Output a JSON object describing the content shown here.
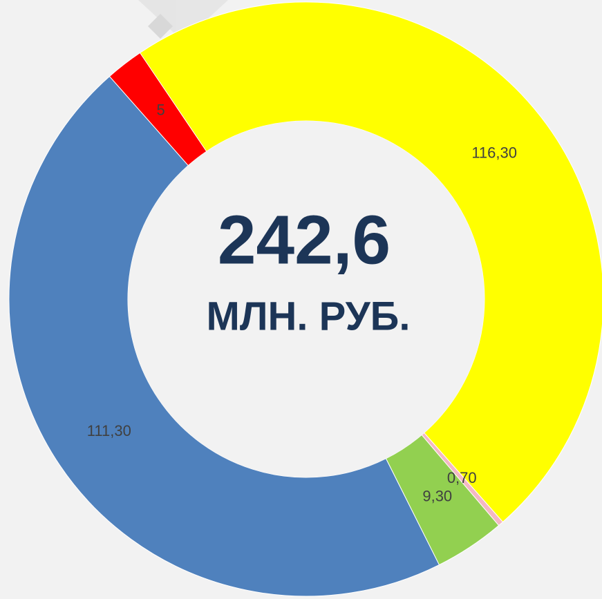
{
  "chart_data": {
    "type": "donut",
    "center_value": "242,6",
    "center_unit": "МЛН. РУБ.",
    "categories": [
      null,
      null,
      null,
      null,
      null
    ],
    "values": [
      116.3,
      0.7,
      9.3,
      111.3,
      5
    ],
    "value_labels": [
      "116,30",
      "0,70",
      "9,30",
      "111,30",
      "5"
    ],
    "colors": [
      "#ffff00",
      "#f4b8c4",
      "#92d050",
      "#4f81bd",
      "#ff0000"
    ]
  }
}
